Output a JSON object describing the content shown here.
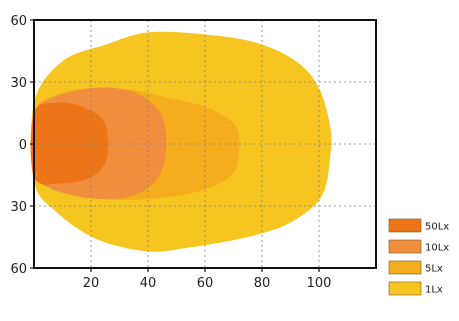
{
  "chart_data": {
    "type": "area",
    "chart_kind": "isolux beam pattern",
    "x_ticks": [
      20,
      40,
      60,
      80,
      100
    ],
    "y_ticks": [
      60,
      30,
      0,
      30,
      60
    ],
    "y_tick_values": [
      60,
      30,
      0,
      -30,
      -60
    ],
    "xlim": [
      0,
      120
    ],
    "ylim": [
      -60,
      60
    ],
    "grid": true,
    "grid_style": "dotted",
    "legend_position": "right-bottom",
    "series": [
      {
        "name": "1Lx",
        "color": "#f7c520",
        "outline": [
          [
            0,
            20
          ],
          [
            10,
            40
          ],
          [
            25,
            48
          ],
          [
            40,
            54
          ],
          [
            60,
            53
          ],
          [
            78,
            49
          ],
          [
            92,
            40
          ],
          [
            100,
            27
          ],
          [
            104,
            8
          ],
          [
            104,
            -5
          ],
          [
            101,
            -25
          ],
          [
            90,
            -38
          ],
          [
            75,
            -45
          ],
          [
            55,
            -50
          ],
          [
            40,
            -52
          ],
          [
            22,
            -46
          ],
          [
            8,
            -33
          ],
          [
            0,
            -18
          ]
        ]
      },
      {
        "name": "5Lx",
        "color": "#f5ad1d",
        "outline": [
          [
            0,
            15
          ],
          [
            8,
            24
          ],
          [
            20,
            27
          ],
          [
            35,
            26
          ],
          [
            48,
            22
          ],
          [
            60,
            18
          ],
          [
            70,
            10
          ],
          [
            72,
            0
          ],
          [
            70,
            -14
          ],
          [
            60,
            -22
          ],
          [
            45,
            -26
          ],
          [
            28,
            -27
          ],
          [
            12,
            -24
          ],
          [
            0,
            -14
          ]
        ]
      },
      {
        "name": "10Lx",
        "color": "#f08e3e",
        "outline": [
          [
            0,
            14
          ],
          [
            6,
            22
          ],
          [
            20,
            27
          ],
          [
            33,
            26
          ],
          [
            42,
            19
          ],
          [
            46,
            9
          ],
          [
            46,
            -7
          ],
          [
            42,
            -19
          ],
          [
            32,
            -26
          ],
          [
            18,
            -26
          ],
          [
            5,
            -21
          ],
          [
            0,
            -13
          ]
        ]
      },
      {
        "name": "50Lx",
        "color": "#ee7418",
        "outline": [
          [
            0,
            15
          ],
          [
            8,
            20
          ],
          [
            17,
            18
          ],
          [
            24,
            12
          ],
          [
            26,
            2
          ],
          [
            25,
            -9
          ],
          [
            20,
            -16
          ],
          [
            10,
            -19
          ],
          [
            0,
            -16
          ]
        ]
      }
    ]
  }
}
